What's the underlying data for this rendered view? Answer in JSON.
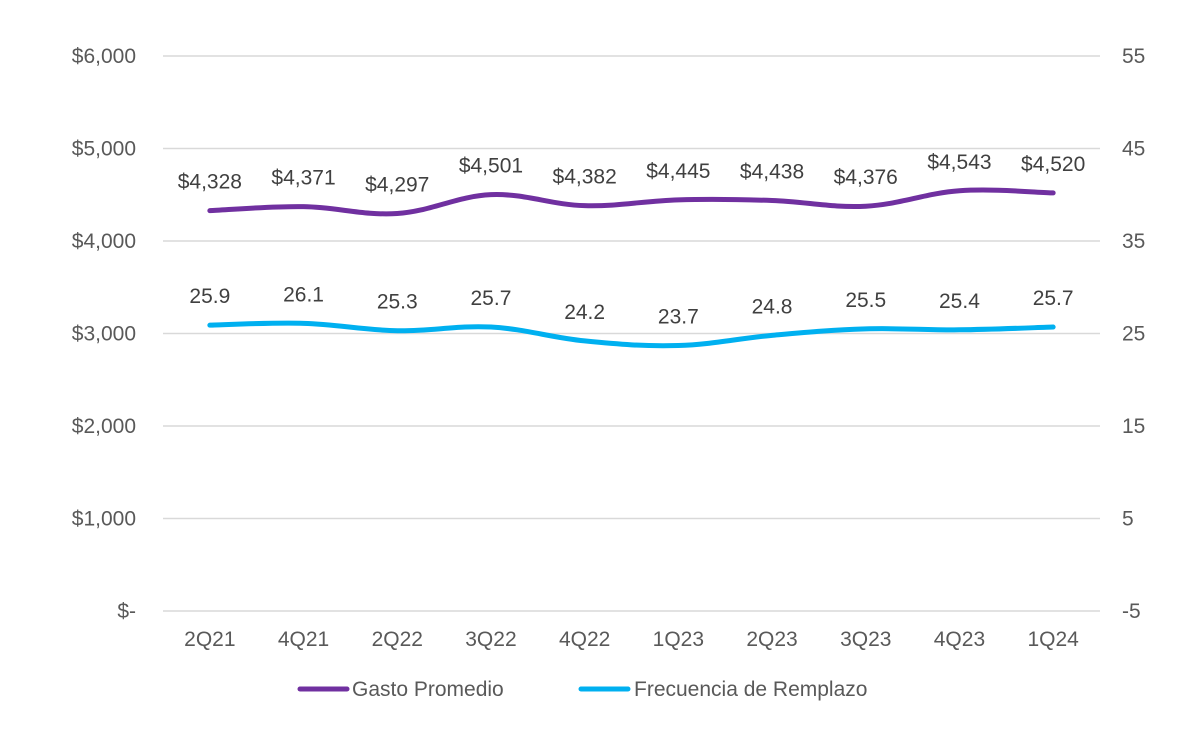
{
  "chart_data": {
    "type": "line",
    "categories": [
      "2Q21",
      "4Q21",
      "2Q22",
      "3Q22",
      "4Q22",
      "1Q23",
      "2Q23",
      "3Q23",
      "4Q23",
      "1Q24"
    ],
    "series": [
      {
        "name": "Gasto Promedio",
        "axis": "left",
        "color": "#7030a0",
        "values": [
          4328,
          4371,
          4297,
          4501,
          4382,
          4445,
          4438,
          4376,
          4543,
          4520
        ],
        "labels": [
          "$4,328",
          "$4,371",
          "$4,297",
          "$4,501",
          "$4,382",
          "$4,445",
          "$4,438",
          "$4,376",
          "$4,543",
          "$4,520"
        ]
      },
      {
        "name": "Frecuencia de Remplazo",
        "axis": "right",
        "color": "#00b0f0",
        "values": [
          25.9,
          26.1,
          25.3,
          25.7,
          24.2,
          23.7,
          24.8,
          25.5,
          25.4,
          25.7
        ],
        "labels": [
          "25.9",
          "26.1",
          "25.3",
          "25.7",
          "24.2",
          "23.7",
          "24.8",
          "25.5",
          "25.4",
          "25.7"
        ]
      }
    ],
    "left_axis": {
      "ylim": [
        0,
        6000
      ],
      "ticks": [
        0,
        1000,
        2000,
        3000,
        4000,
        5000,
        6000
      ],
      "tick_labels": [
        "$-",
        "$1,000",
        "$2,000",
        "$3,000",
        "$4,000",
        "$5,000",
        "$6,000"
      ]
    },
    "right_axis": {
      "ylim": [
        -5,
        55
      ],
      "ticks": [
        -5,
        5,
        15,
        25,
        35,
        45,
        55
      ],
      "tick_labels": [
        "-5",
        "5",
        "15",
        "25",
        "35",
        "45",
        "55"
      ]
    },
    "grid": true,
    "legend_position": "bottom"
  }
}
